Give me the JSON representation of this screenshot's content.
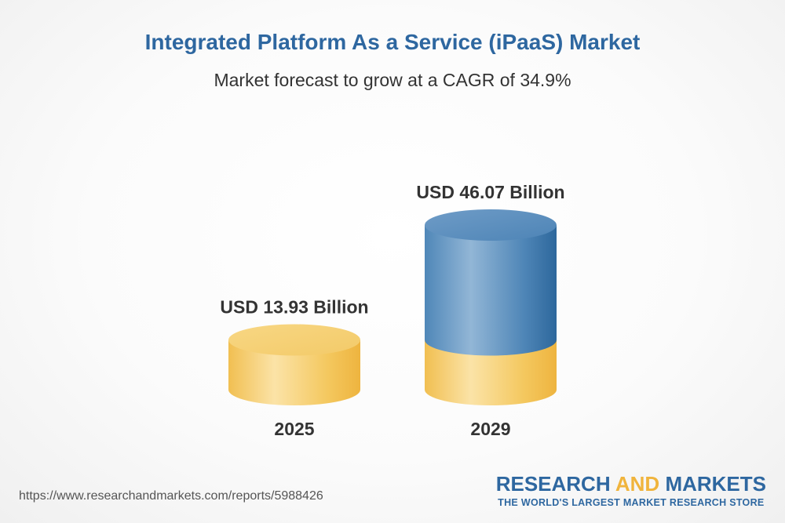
{
  "title": "Integrated Platform As a Service (iPaaS) Market",
  "subtitle": "Market forecast to grow at a CAGR of 34.9%",
  "source_url": "https://www.researchandmarkets.com/reports/5988426",
  "logo": {
    "part1": "RESEARCH ",
    "part2": "AND",
    "part3": " MARKETS",
    "tagline": "THE WORLD'S LARGEST MARKET RESEARCH STORE"
  },
  "colors": {
    "blue": "#2e67a0",
    "gold": "#f3c45a",
    "text": "#333333"
  },
  "chart_data": {
    "type": "bar",
    "categories": [
      "2025",
      "2029"
    ],
    "values": [
      13.93,
      46.07
    ],
    "value_labels": [
      "USD 13.93 Billion",
      "USD 46.07 Billion"
    ],
    "unit": "USD Billion",
    "style": "3d-cylinder",
    "title": "Integrated Platform As a Service (iPaaS) Market",
    "subtitle": "Market forecast to grow at a CAGR of 34.9%"
  }
}
